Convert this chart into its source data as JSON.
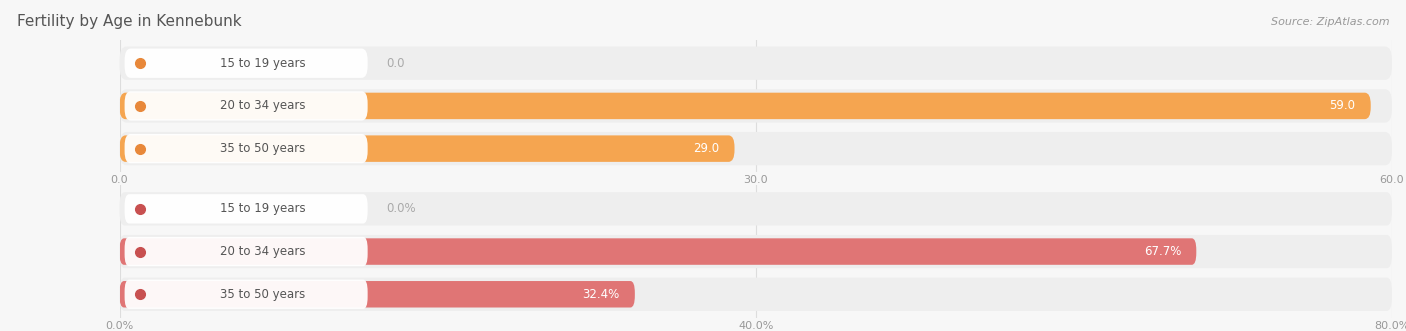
{
  "title": "Fertility by Age in Kennebunk",
  "source_text": "Source: ZipAtlas.com",
  "top_chart": {
    "categories": [
      "15 to 19 years",
      "20 to 34 years",
      "35 to 50 years"
    ],
    "values": [
      0.0,
      59.0,
      29.0
    ],
    "max_value": 60.0,
    "tick_values": [
      0.0,
      30.0,
      60.0
    ],
    "tick_labels": [
      "0.0",
      "30.0",
      "60.0"
    ],
    "bar_color": "#f5a550",
    "bar_bg_color": "#eeeeee",
    "label_dot_color": "#e8883a",
    "value_label_inside_color": "#ffffff",
    "value_label_outside_color": "#aaaaaa"
  },
  "bottom_chart": {
    "categories": [
      "15 to 19 years",
      "20 to 34 years",
      "35 to 50 years"
    ],
    "values": [
      0.0,
      67.7,
      32.4
    ],
    "max_value": 80.0,
    "tick_values": [
      0.0,
      40.0,
      80.0
    ],
    "tick_labels": [
      "0.0%",
      "40.0%",
      "80.0%"
    ],
    "bar_color": "#e07575",
    "bar_bg_color": "#eeeeee",
    "label_dot_color": "#c85050",
    "value_label_inside_color": "#ffffff",
    "value_label_outside_color": "#aaaaaa"
  },
  "title_fontsize": 11,
  "source_fontsize": 8,
  "label_fontsize": 8.5,
  "tick_fontsize": 8,
  "category_fontsize": 8.5,
  "background_color": "#f7f7f7",
  "chart_bg_color": "#f7f7f7",
  "grid_color": "#dddddd",
  "separator_color": "#dddddd"
}
